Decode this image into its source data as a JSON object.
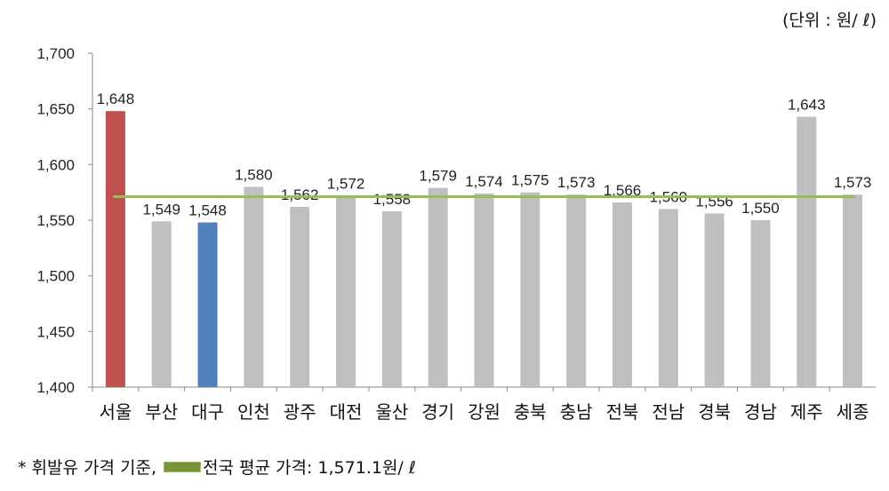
{
  "unit_label": "(단위 : 원/ ℓ)",
  "footnote": {
    "prefix": "* 휘발유 가격 기준,",
    "legend_label": "전국 평균 가격: 1,571.1원/ ℓ"
  },
  "chart_data": {
    "type": "bar",
    "categories": [
      "서울",
      "부산",
      "대구",
      "인천",
      "광주",
      "대전",
      "울산",
      "경기",
      "강원",
      "충북",
      "충남",
      "전북",
      "전남",
      "경북",
      "경남",
      "제주",
      "세종"
    ],
    "values": [
      1648,
      1549,
      1548,
      1580,
      1562,
      1572,
      1558,
      1579,
      1574,
      1575,
      1573,
      1566,
      1560,
      1556,
      1550,
      1643,
      1573
    ],
    "data_labels": [
      "1,648",
      "1,549",
      "1,548",
      "1,580",
      "1,562",
      "1,572",
      "1,558",
      "1,579",
      "1,574",
      "1,575",
      "1,573",
      "1,566",
      "1,560",
      "1,556",
      "1,550",
      "1,643",
      "1,573"
    ],
    "bar_colors": {
      "default": "#bfbfbf",
      "서울": "#c0504d",
      "대구": "#4f81bd"
    },
    "reference_line": {
      "value": 1571.1,
      "color": "#9bbb59"
    },
    "ylim": [
      1400,
      1700
    ],
    "yticks": [
      1400,
      1450,
      1500,
      1550,
      1600,
      1650,
      1700
    ],
    "ytick_labels": [
      "1,400",
      "1,450",
      "1,500",
      "1,550",
      "1,600",
      "1,650",
      "1,700"
    ],
    "grid": false,
    "legend": "bottom-left"
  }
}
